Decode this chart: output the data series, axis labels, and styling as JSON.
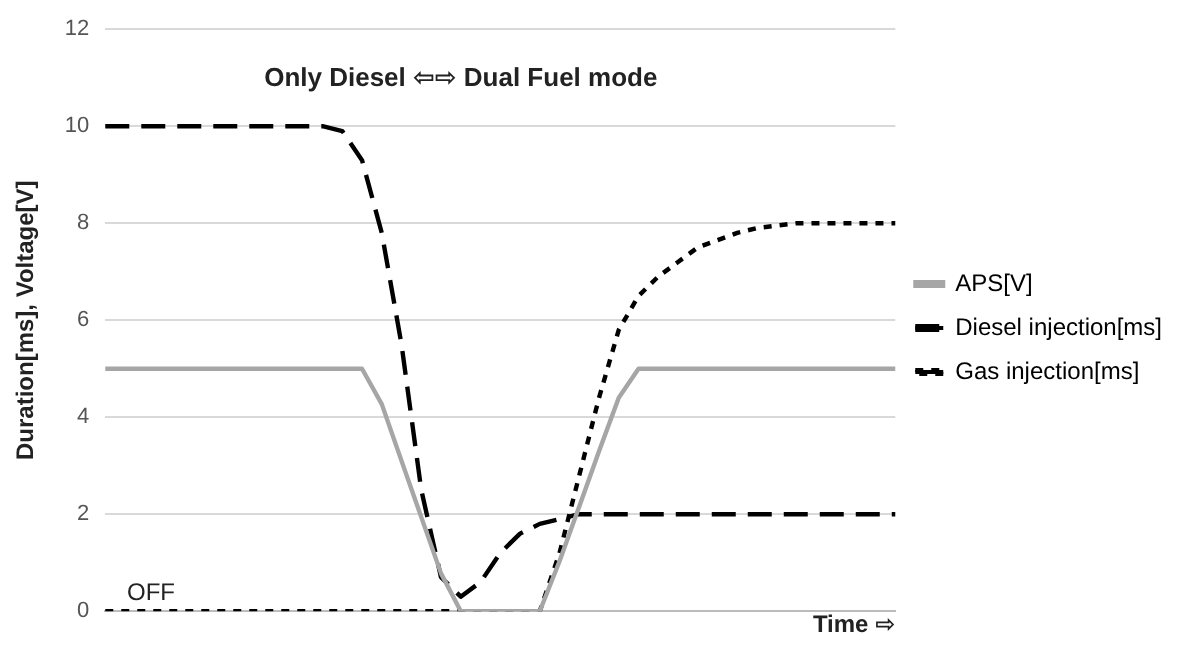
{
  "chart_data": {
    "type": "line",
    "title": "Only Diesel ⇦⇨ Dual Fuel mode",
    "ylabel": "Duration[ms], Voltage[V]",
    "xlabel": "Time ⇨",
    "annotations": [
      "OFF"
    ],
    "categories": [
      null,
      null,
      null,
      null,
      null,
      null,
      null,
      null,
      null,
      null,
      null,
      null,
      null,
      null,
      null,
      null,
      null,
      null,
      null,
      null,
      null,
      null,
      null,
      null,
      null,
      null,
      null,
      null,
      null,
      null,
      null,
      null,
      null,
      null,
      null,
      null,
      null,
      null,
      null,
      null,
      null
    ],
    "ylim": [
      0,
      12
    ],
    "yticks": [
      0,
      2,
      4,
      6,
      8,
      10,
      12
    ],
    "grid": "y",
    "legend": "right",
    "marker": "none",
    "tick_labels": "y",
    "series": [
      {
        "name": "APS[V]",
        "color": "#a6a6a6",
        "line_style": "solid",
        "values": [
          5,
          5,
          5,
          5,
          5,
          5,
          5,
          5,
          5,
          5,
          5,
          5,
          5,
          5,
          4.27,
          3.1,
          1.94,
          0.78,
          0,
          0,
          0,
          0,
          0,
          1.03,
          2.16,
          3.3,
          4.4,
          5,
          5,
          5,
          5,
          5,
          5,
          5,
          5,
          5,
          5,
          5,
          5,
          5,
          5
        ]
      },
      {
        "name": "Diesel injection[ms]",
        "color": "#000000",
        "line_style": "dashed",
        "values": [
          10,
          10,
          10,
          10,
          10,
          10,
          10,
          10,
          10,
          10,
          10,
          10,
          9.9,
          9.3,
          7.8,
          5.5,
          2.5,
          0.7,
          0.3,
          0.6,
          1.2,
          1.6,
          1.8,
          1.9,
          2,
          2,
          2,
          2,
          2,
          2,
          2,
          2,
          2,
          2,
          2,
          2,
          2,
          2,
          2,
          2,
          2
        ]
      },
      {
        "name": "Gas injection[ms]",
        "color": "#000000",
        "line_style": "dotted",
        "values": [
          0,
          0,
          0,
          0,
          0,
          0,
          0,
          0,
          0,
          0,
          0,
          0,
          0,
          0,
          0,
          0,
          0,
          0,
          0,
          0,
          0,
          0,
          0,
          1.2,
          2.8,
          4.4,
          5.8,
          6.5,
          6.9,
          7.2,
          7.5,
          7.65,
          7.8,
          7.9,
          7.95,
          8,
          8,
          8,
          8,
          8,
          8
        ]
      }
    ]
  }
}
